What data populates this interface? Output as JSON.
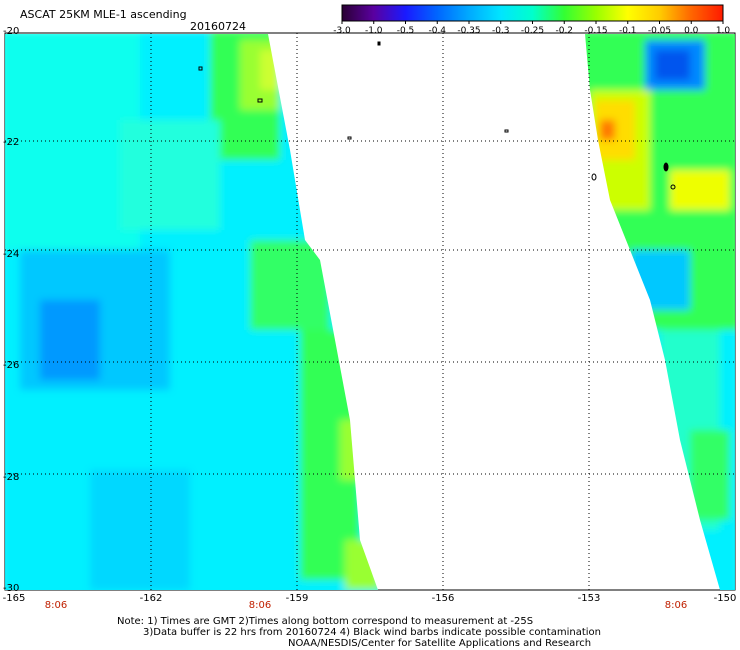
{
  "header": {
    "title": "ASCAT 25KM MLE-1 ascending",
    "date": "20160724"
  },
  "colorbar": {
    "labels": [
      "-3.0",
      "-1.0",
      "-0.5",
      "-0.4",
      "-0.35",
      "-0.3",
      "-0.25",
      "-0.2",
      "-0.15",
      "-0.1",
      "-0.05",
      "0.0",
      "1.0"
    ],
    "colors": [
      "#2a0033",
      "#5a00a0",
      "#1a1aff",
      "#0066ff",
      "#00aaff",
      "#00e5ff",
      "#00ffcc",
      "#33ff33",
      "#99ff00",
      "#ffff00",
      "#ffcc00",
      "#ff6600",
      "#ff1a00"
    ]
  },
  "map": {
    "lat_labels": [
      "-20",
      "-22",
      "-24",
      "-26",
      "-28",
      "-30"
    ],
    "lon_labels": [
      "-165",
      "-162",
      "-159",
      "-156",
      "-153",
      "-150"
    ],
    "time_labels": [
      "8:06",
      "8:06",
      "8:06"
    ],
    "lat_range": [
      -30,
      -20
    ],
    "lon_range": [
      -165,
      -150
    ],
    "grid": true,
    "gridline_style": "dotted"
  },
  "notes": {
    "line1": "Note: 1) Times are GMT 2)Times along bottom correspond to measurement at -25S",
    "line2": "3)Data buffer is 22 hrs from 20160724 4) Black wind barbs indicate possible contamination",
    "line3": "NOAA/NESDIS/Center for Satellite Applications and Research"
  }
}
